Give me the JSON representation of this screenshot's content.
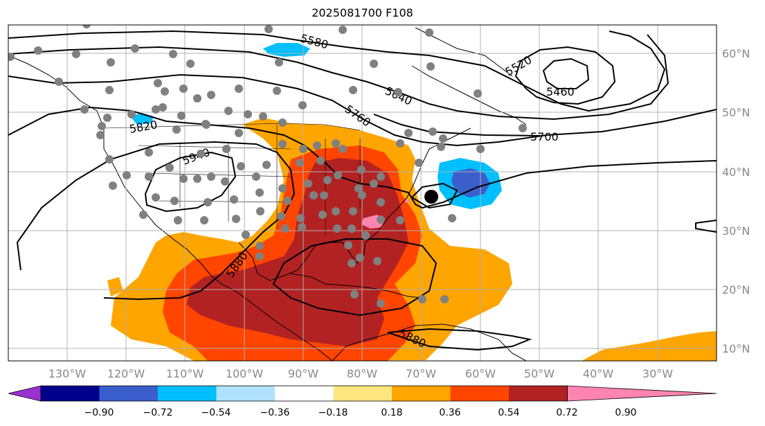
{
  "title": "2025081700 F108",
  "map": {
    "projection": "plate-carree",
    "lon_range": [
      -140,
      -20
    ],
    "lat_range": [
      8,
      65
    ],
    "grid": true,
    "lon_ticks": [
      "130°W",
      "120°W",
      "110°W",
      "100°W",
      "90°W",
      "80°W",
      "70°W",
      "60°W",
      "50°W",
      "40°W",
      "30°W"
    ],
    "lat_ticks": [
      "60°N",
      "50°N",
      "40°N",
      "30°N",
      "20°N",
      "10°N"
    ]
  },
  "colorbar": {
    "ticks": [
      "−0.90",
      "−0.72",
      "−0.54",
      "−0.36",
      "−0.18",
      "0.18",
      "0.36",
      "0.54",
      "0.72",
      "0.90"
    ],
    "colors": [
      "#9b30d0",
      "#00008b",
      "#3a5fcd",
      "#00bfff",
      "#b0e2ff",
      "#ffffff",
      "#ffe680",
      "#ffa500",
      "#ff4500",
      "#b22222",
      "#ff85b0"
    ],
    "extend": "both"
  },
  "contours": {
    "color": "#000000",
    "labels": [
      "5580",
      "5640",
      "5760",
      "5520",
      "5460",
      "5820",
      "5700",
      "5940",
      "5880",
      "5880"
    ]
  },
  "markers": {
    "station_color": "#808080",
    "center_color": "#000000"
  }
}
